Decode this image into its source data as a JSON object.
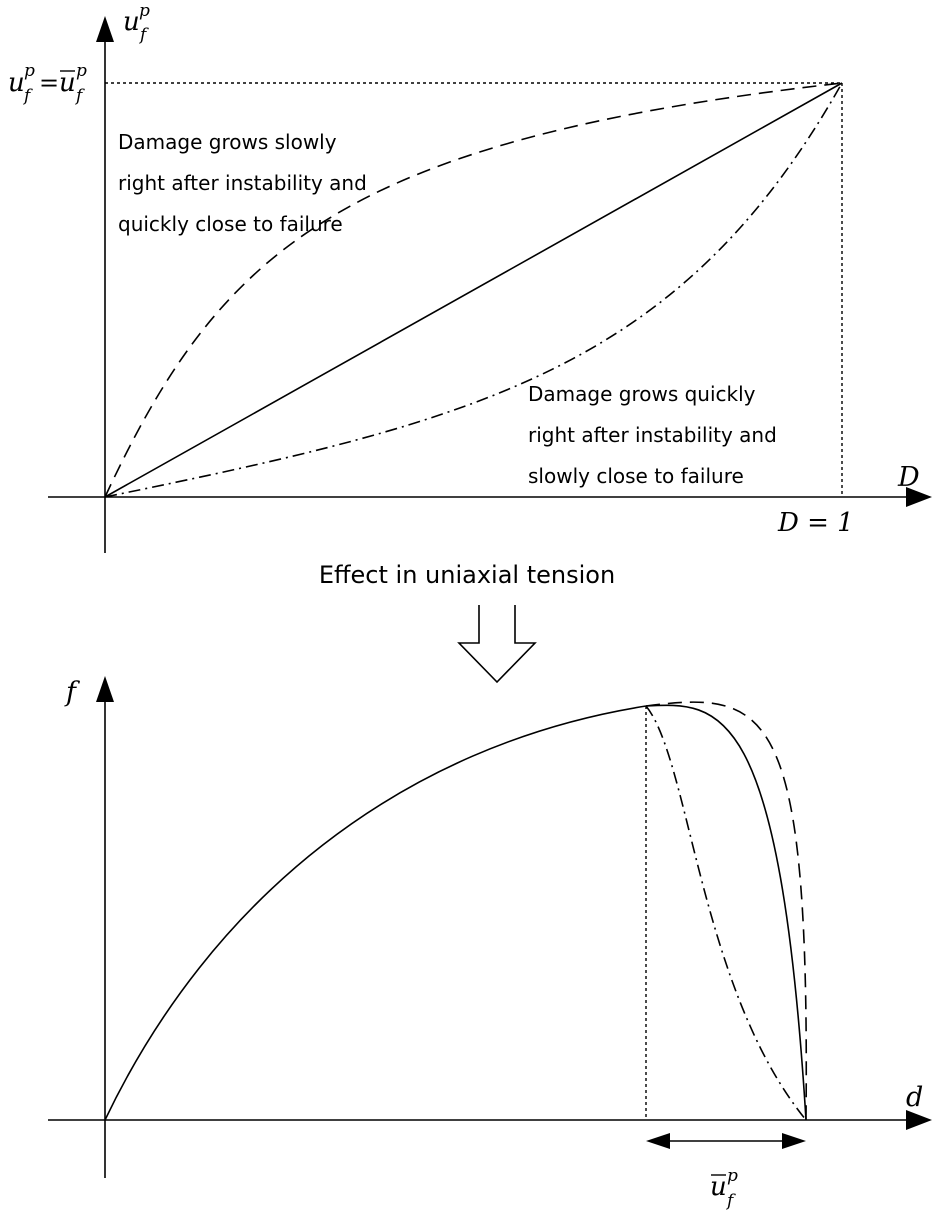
{
  "top_plot": {
    "y_axis_label": {
      "base": "u",
      "sub": "f",
      "sup": "p"
    },
    "x_axis_label": "D",
    "y_tick_label": {
      "lhs_base": "u",
      "lhs_sub": "f",
      "lhs_sup": "p",
      "eq": "=",
      "rhs_base": "u",
      "rhs_sub": "f",
      "rhs_sup": "p"
    },
    "x_tick_label": "D = 1",
    "note_upper": [
      "Damage grows slowly",
      "right after instability and",
      "quickly close to failure"
    ],
    "note_lower": [
      "Damage grows quickly",
      "right after instability and",
      "slowly close to failure"
    ]
  },
  "middle": {
    "caption": "Effect in uniaxial tension"
  },
  "bottom_plot": {
    "y_axis_label": "f",
    "x_axis_label": "d",
    "dimension_label": {
      "base": "u",
      "sub": "f",
      "sup": "p"
    }
  }
}
